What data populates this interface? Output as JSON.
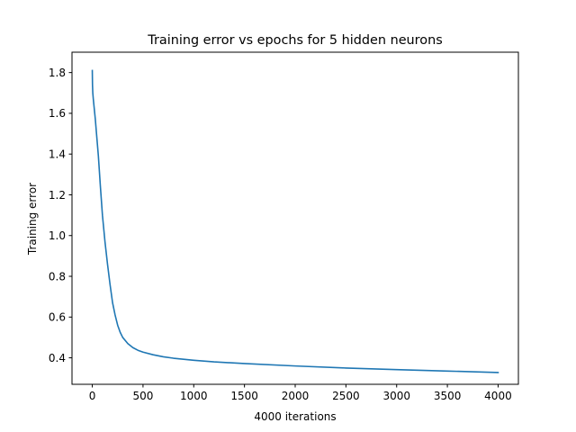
{
  "chart_data": {
    "type": "line",
    "title": "Training error vs epochs for 5 hidden neurons",
    "xlabel": "4000 iterations",
    "ylabel": "Training error",
    "xlim": [
      -200,
      4200
    ],
    "ylim": [
      0.27,
      1.9
    ],
    "x_ticks": [
      0,
      500,
      1000,
      1500,
      2000,
      2500,
      3000,
      3500,
      4000
    ],
    "x_tick_labels": [
      "0",
      "500",
      "1000",
      "1500",
      "2000",
      "2500",
      "3000",
      "3500",
      "4000"
    ],
    "y_ticks": [
      0.4,
      0.6,
      0.8,
      1.0,
      1.2,
      1.4,
      1.6,
      1.8
    ],
    "y_tick_labels": [
      "0.4",
      "0.6",
      "0.8",
      "1.0",
      "1.2",
      "1.4",
      "1.6",
      "1.8"
    ],
    "grid": false,
    "series": [
      {
        "name": "training error",
        "color": "#1f77b4",
        "x": [
          0,
          2,
          5,
          10,
          20,
          30,
          40,
          60,
          80,
          100,
          125,
          150,
          175,
          200,
          225,
          250,
          275,
          300,
          350,
          400,
          450,
          500,
          600,
          700,
          800,
          1000,
          1200,
          1500,
          2000,
          2500,
          3000,
          3500,
          4000
        ],
        "y": [
          1.81,
          1.74,
          1.7,
          1.67,
          1.62,
          1.57,
          1.51,
          1.39,
          1.24,
          1.1,
          0.97,
          0.86,
          0.76,
          0.67,
          0.61,
          0.56,
          0.525,
          0.5,
          0.47,
          0.45,
          0.437,
          0.428,
          0.415,
          0.405,
          0.398,
          0.388,
          0.38,
          0.372,
          0.36,
          0.35,
          0.342,
          0.335,
          0.328
        ]
      }
    ]
  }
}
